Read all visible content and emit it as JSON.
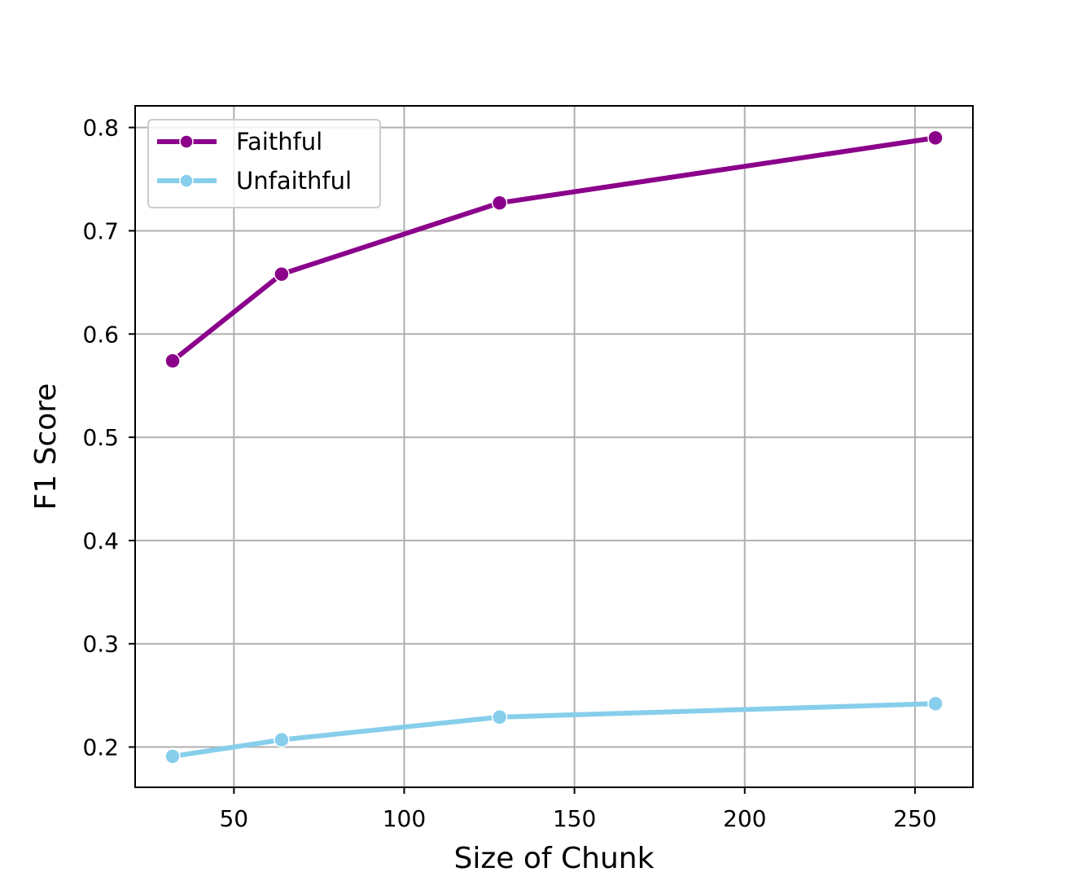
{
  "chart_data": {
    "type": "line",
    "title": "",
    "xlabel": "Size of Chunk",
    "ylabel": "F1 Score",
    "x": [
      32,
      64,
      128,
      256
    ],
    "xlim": [
      21,
      267
    ],
    "ylim": [
      0.161,
      0.821
    ],
    "xticks": [
      50,
      100,
      150,
      200,
      250
    ],
    "yticks": [
      0.2,
      0.3,
      0.4,
      0.5,
      0.6,
      0.7,
      0.8
    ],
    "xtick_labels": [
      "50",
      "100",
      "150",
      "200",
      "250"
    ],
    "ytick_labels": [
      "0.2",
      "0.3",
      "0.4",
      "0.5",
      "0.6",
      "0.7",
      "0.8"
    ],
    "grid": true,
    "legend_position": "top-left",
    "series": [
      {
        "name": "Faithful",
        "values": [
          0.574,
          0.658,
          0.727,
          0.79
        ],
        "color": "#8B008B",
        "marker": "circle"
      },
      {
        "name": "Unfaithful",
        "values": [
          0.191,
          0.207,
          0.229,
          0.242
        ],
        "color": "#87CEEB",
        "marker": "circle"
      }
    ]
  }
}
